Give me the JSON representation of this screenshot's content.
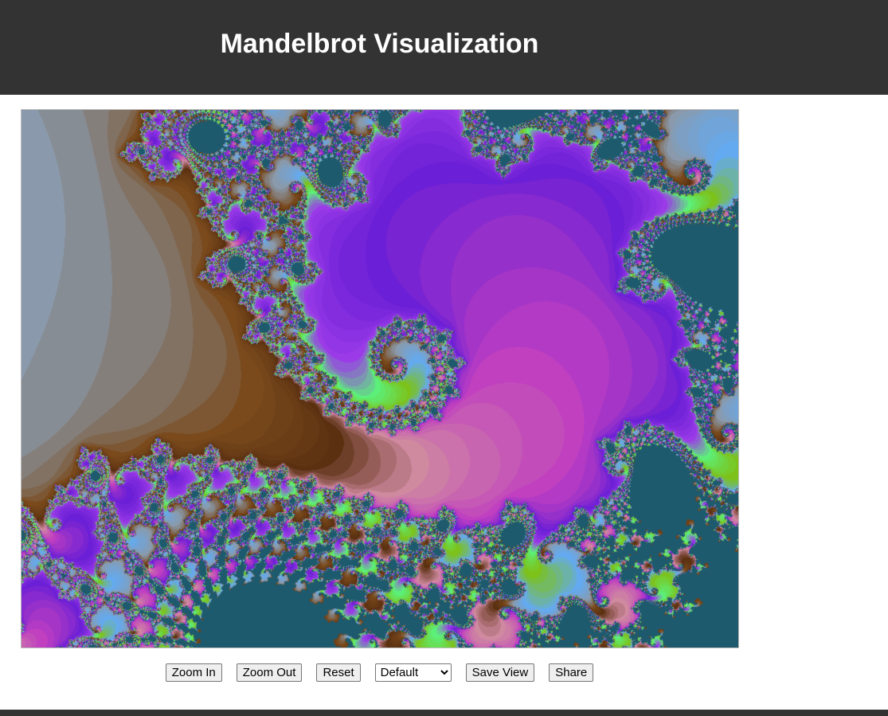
{
  "header": {
    "title": "Mandelbrot Visualization",
    "background": "#333333",
    "text_color": "#ffffff"
  },
  "viewer": {
    "palette_colors": [
      "#6b1fd6",
      "#9b3be8",
      "#5cf07a",
      "#7cc21a",
      "#64aaf0",
      "#8a9aac",
      "#7a4a1c",
      "#5a3010",
      "#d08aa0",
      "#c040c0"
    ]
  },
  "controls": {
    "zoom_in_label": "Zoom In",
    "zoom_out_label": "Zoom Out",
    "reset_label": "Reset",
    "palette_selected": "Default",
    "save_view_label": "Save View",
    "share_label": "Share"
  },
  "footer": {
    "background": "#333333"
  }
}
